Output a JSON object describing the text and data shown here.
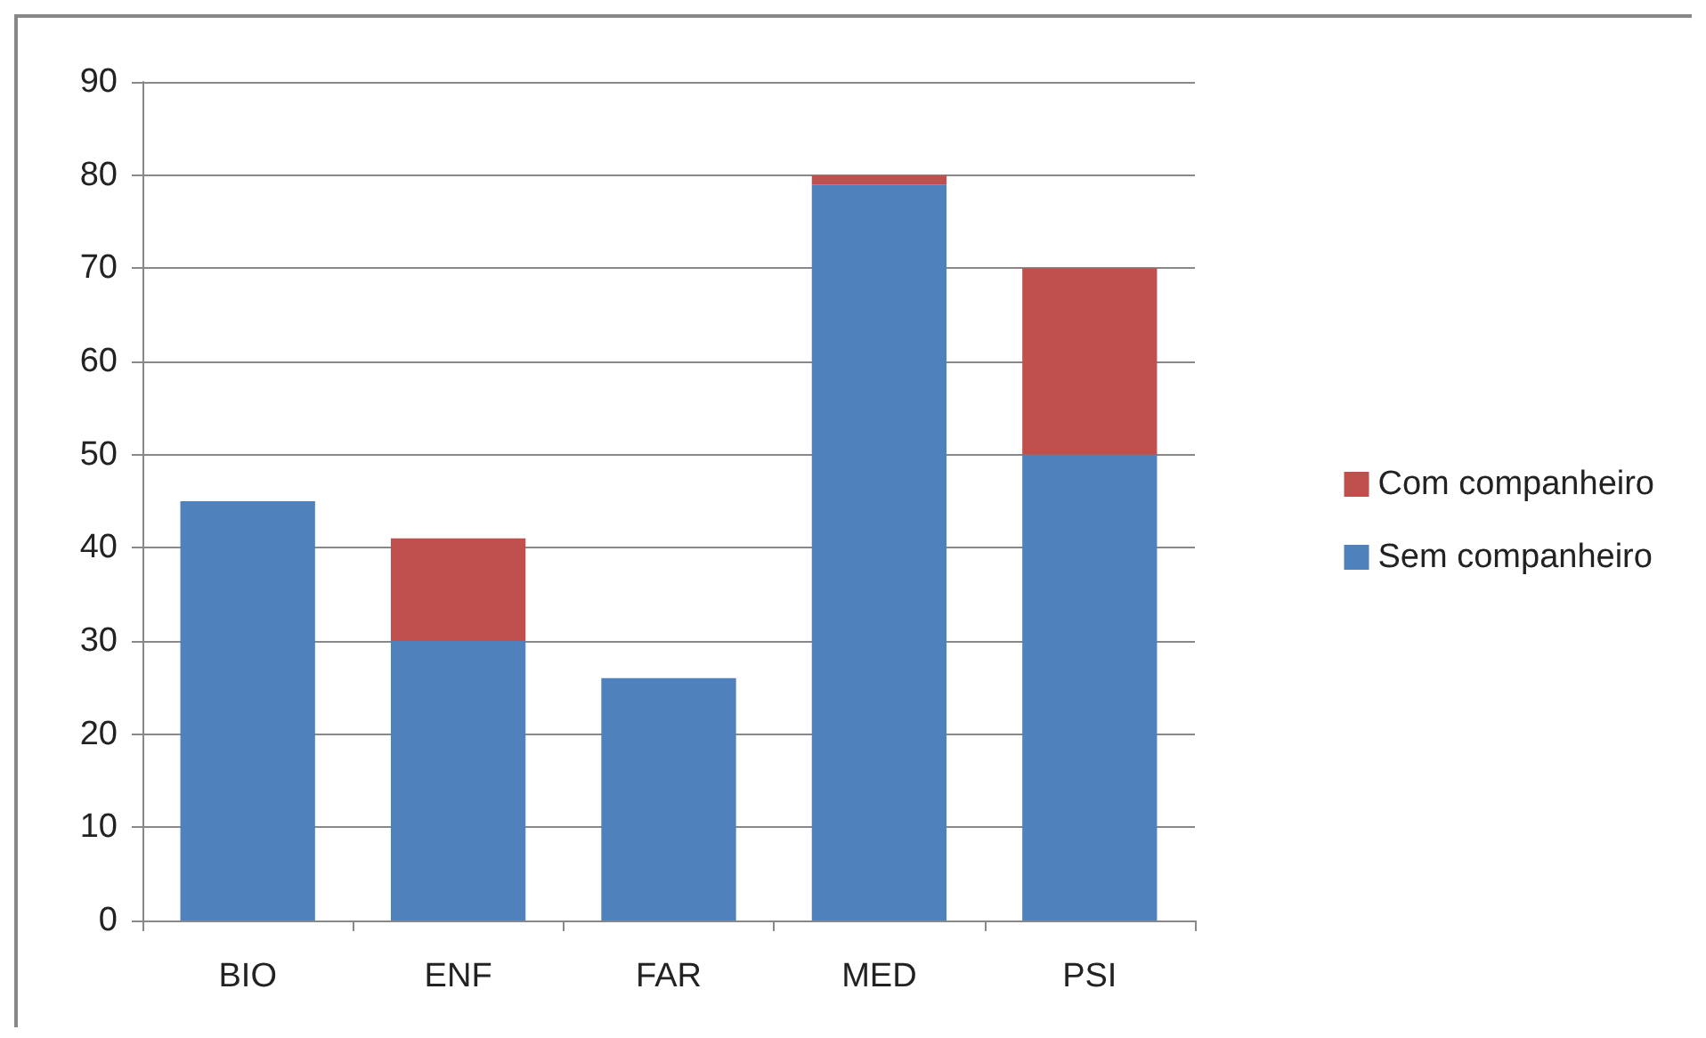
{
  "chart_data": {
    "type": "bar",
    "stacked": true,
    "categories": [
      "BIO",
      "ENF",
      "FAR",
      "MED",
      "PSI"
    ],
    "series": [
      {
        "name": "Sem companheiro",
        "color": "#4f81bd",
        "values": [
          45,
          30,
          26,
          79,
          50
        ]
      },
      {
        "name": "Com companheiro",
        "color": "#c0504d",
        "values": [
          0,
          11,
          0,
          1,
          20
        ]
      }
    ],
    "ylim": [
      0,
      90
    ],
    "yticks": [
      0,
      10,
      20,
      30,
      40,
      50,
      60,
      70,
      80,
      90
    ],
    "grid": "y",
    "legend": "right"
  }
}
